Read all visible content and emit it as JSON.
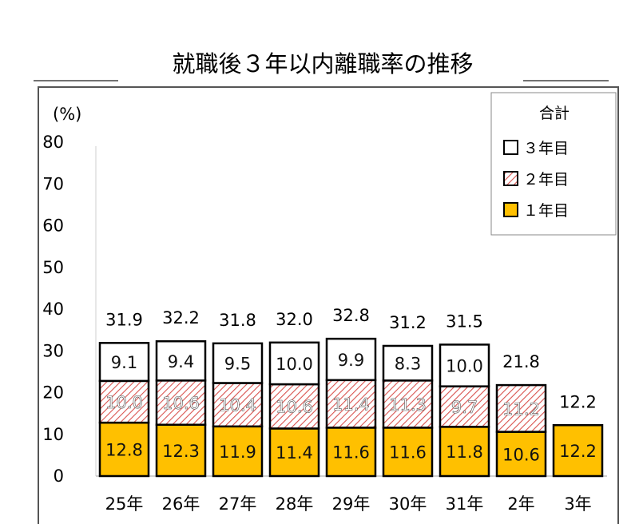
{
  "chart_data": {
    "type": "bar",
    "stacked": true,
    "title": "就職後３年以内離職率の推移",
    "ylabel": "(%)",
    "ylim": [
      0,
      80
    ],
    "yticks": [
      "0",
      "10",
      "20",
      "30",
      "40",
      "50",
      "60",
      "70",
      "80"
    ],
    "categories": [
      "25年",
      "26年",
      "27年",
      "28年",
      "29年",
      "30年",
      "31年",
      "2年",
      "3年"
    ],
    "series": [
      {
        "name": "１年目",
        "values": [
          12.8,
          12.3,
          11.9,
          11.4,
          11.6,
          11.6,
          11.8,
          10.6,
          12.2
        ],
        "labels": [
          "12.8",
          "12.3",
          "11.9",
          "11.4",
          "11.6",
          "11.6",
          "11.8",
          "10.6",
          "12.2"
        ],
        "color": "#FFC000"
      },
      {
        "name": "２年目",
        "values": [
          10.0,
          10.6,
          10.4,
          10.6,
          11.4,
          11.3,
          9.7,
          11.2,
          null
        ],
        "labels": [
          "10.0",
          "10.6",
          "10.4",
          "10.6",
          "11.4",
          "11.3",
          "9.7",
          "11.2",
          null
        ],
        "color": "#E8A0A0"
      },
      {
        "name": "３年目",
        "values": [
          9.1,
          9.4,
          9.5,
          10.0,
          9.9,
          8.3,
          10.0,
          null,
          null
        ],
        "labels": [
          "9.1",
          "9.4",
          "9.5",
          "10.0",
          "9.9",
          "8.3",
          "10.0",
          null,
          null
        ],
        "color": "#FFFFFF"
      }
    ],
    "totals": [
      "31.9",
      "32.2",
      "31.8",
      "32.0",
      "32.8",
      "31.2",
      "31.5",
      "21.8",
      "12.2"
    ],
    "legend": {
      "title": "合計",
      "position": "top-right",
      "entries": [
        "３年目",
        "２年目",
        "１年目"
      ]
    }
  }
}
